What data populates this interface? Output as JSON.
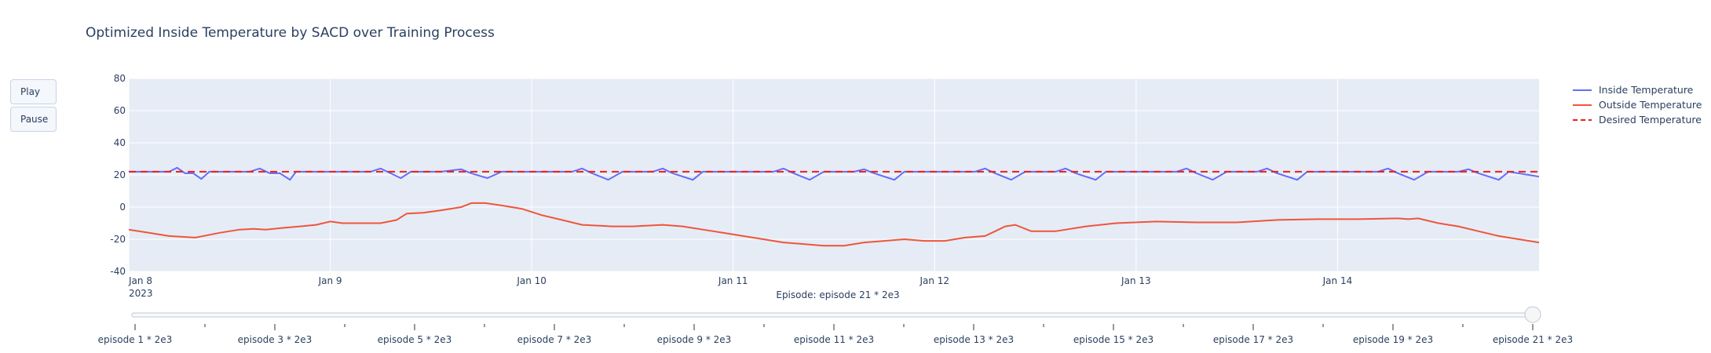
{
  "title": "Optimized Inside Temperature by SACD over Training Process",
  "buttons": {
    "play": "Play",
    "pause": "Pause"
  },
  "slider": {
    "current_label": "Episode: episode 21 * 2e3",
    "ticks": [
      "episode 1 * 2e3",
      "episode 3 * 2e3",
      "episode 5 * 2e3",
      "episode 7 * 2e3",
      "episode 9 * 2e3",
      "episode 11 * 2e3",
      "episode 13 * 2e3",
      "episode 15 * 2e3",
      "episode 17 * 2e3",
      "episode 19 * 2e3",
      "episode 21 * 2e3"
    ],
    "total_steps": 21,
    "current_step": 21
  },
  "colors": {
    "inside": "#636efa",
    "outside": "#ef553b",
    "desired": "#ef1c1c",
    "plot_bg": "#e5ecf6",
    "grid": "#ffffff"
  },
  "chart_data": {
    "type": "line",
    "title": "Optimized Inside Temperature by SACD over Training Process",
    "xlabel": "",
    "ylabel": "",
    "ylim": [
      -40,
      80
    ],
    "yticks": [
      -40,
      -20,
      0,
      20,
      40,
      60,
      80
    ],
    "xlim_days": [
      8,
      15
    ],
    "xticks": [
      {
        "day": 8,
        "label": "Jan 8",
        "sub": "2023"
      },
      {
        "day": 9,
        "label": "Jan 9",
        "sub": ""
      },
      {
        "day": 10,
        "label": "Jan 10",
        "sub": ""
      },
      {
        "day": 11,
        "label": "Jan 11",
        "sub": ""
      },
      {
        "day": 12,
        "label": "Jan 12",
        "sub": ""
      },
      {
        "day": 13,
        "label": "Jan 13",
        "sub": ""
      },
      {
        "day": 14,
        "label": "Jan 14",
        "sub": ""
      }
    ],
    "grid": true,
    "legend_position": "top-right",
    "series": [
      {
        "name": "Inside Temperature",
        "style": "solid",
        "x": [
          8.0,
          8.2,
          8.24,
          8.28,
          8.32,
          8.36,
          8.4,
          8.6,
          8.65,
          8.7,
          8.75,
          8.8,
          8.83,
          8.9,
          9.2,
          9.25,
          9.3,
          9.35,
          9.4,
          9.55,
          9.65,
          9.7,
          9.78,
          9.85,
          10.2,
          10.25,
          10.3,
          10.38,
          10.45,
          10.6,
          10.65,
          10.7,
          10.8,
          10.85,
          11.2,
          11.25,
          11.3,
          11.38,
          11.45,
          11.6,
          11.65,
          11.7,
          11.8,
          11.85,
          12.2,
          12.25,
          12.3,
          12.38,
          12.45,
          12.6,
          12.65,
          12.7,
          12.8,
          12.85,
          13.2,
          13.25,
          13.3,
          13.38,
          13.45,
          13.6,
          13.65,
          13.7,
          13.8,
          13.85,
          14.2,
          14.25,
          14.3,
          14.38,
          14.45,
          14.6,
          14.65,
          14.7,
          14.8,
          14.85,
          15.0
        ],
        "y": [
          22,
          22,
          24.5,
          21,
          21,
          17.5,
          22,
          22,
          24,
          21,
          21,
          17,
          22,
          22,
          22,
          24,
          21,
          18,
          22,
          22,
          23.5,
          21,
          18,
          22,
          22,
          24,
          21,
          17,
          22,
          22,
          24,
          21,
          17,
          22,
          22,
          24,
          21,
          17,
          22,
          22,
          23.5,
          21,
          17,
          22,
          22,
          24,
          21,
          17,
          22,
          22,
          24,
          21,
          17,
          22,
          22,
          24,
          21,
          17,
          22,
          22,
          24,
          21,
          17,
          22,
          22,
          24,
          21,
          17,
          22,
          22,
          23.5,
          21,
          17,
          22,
          19
        ]
      },
      {
        "name": "Outside Temperature",
        "style": "solid",
        "x": [
          8.0,
          8.1,
          8.2,
          8.33,
          8.45,
          8.55,
          8.62,
          8.68,
          8.76,
          8.85,
          8.93,
          9.0,
          9.06,
          9.15,
          9.25,
          9.33,
          9.38,
          9.46,
          9.55,
          9.65,
          9.7,
          9.77,
          9.85,
          9.95,
          10.05,
          10.15,
          10.25,
          10.4,
          10.5,
          10.65,
          10.75,
          10.85,
          10.95,
          11.05,
          11.15,
          11.25,
          11.35,
          11.45,
          11.55,
          11.65,
          11.75,
          11.85,
          11.95,
          12.05,
          12.15,
          12.25,
          12.3,
          12.35,
          12.4,
          12.48,
          12.6,
          12.75,
          12.9,
          13.1,
          13.3,
          13.5,
          13.7,
          13.9,
          14.1,
          14.3,
          14.35,
          14.4,
          14.5,
          14.6,
          14.7,
          14.8,
          14.9,
          15.0
        ],
        "y": [
          -14,
          -16,
          -18,
          -19,
          -16,
          -14,
          -13.5,
          -14,
          -13,
          -12,
          -11,
          -9,
          -10,
          -10,
          -10,
          -8,
          -4,
          -3.5,
          -2,
          0,
          2.5,
          2.5,
          1,
          -1,
          -5,
          -8,
          -11,
          -12,
          -12,
          -11,
          -12,
          -14,
          -16,
          -18,
          -20,
          -22,
          -23,
          -24,
          -24,
          -22,
          -21,
          -20,
          -21,
          -21,
          -19,
          -18,
          -15,
          -12,
          -11,
          -15,
          -15,
          -12,
          -10,
          -9,
          -9.5,
          -9.5,
          -8,
          -7.5,
          -7.5,
          -7,
          -7.5,
          -7,
          -10,
          -12,
          -15,
          -18,
          -20,
          -22
        ]
      },
      {
        "name": "Desired Temperature",
        "style": "dash",
        "x": [
          8.0,
          15.0
        ],
        "y": [
          22,
          22
        ]
      }
    ]
  }
}
